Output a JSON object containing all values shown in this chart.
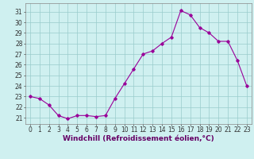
{
  "hours": [
    0,
    1,
    2,
    3,
    4,
    5,
    6,
    7,
    8,
    9,
    10,
    11,
    12,
    13,
    14,
    15,
    16,
    17,
    18,
    19,
    20,
    21,
    22,
    23
  ],
  "values": [
    23.0,
    22.8,
    22.2,
    21.2,
    20.9,
    21.2,
    21.2,
    21.1,
    21.2,
    22.8,
    24.2,
    25.6,
    27.0,
    27.3,
    28.0,
    28.6,
    31.1,
    30.7,
    29.5,
    29.0,
    28.2,
    28.2,
    26.4,
    24.0
  ],
  "line_color": "#990099",
  "marker": "D",
  "marker_size": 1.8,
  "bg_color": "#cff0f0",
  "grid_color": "#99cccc",
  "xlabel": "Windchill (Refroidissement éolien,°C)",
  "xlabel_fontsize": 6.5,
  "ylabel_ticks": [
    21,
    22,
    23,
    24,
    25,
    26,
    27,
    28,
    29,
    30,
    31
  ],
  "ylim": [
    20.4,
    31.8
  ],
  "xlim": [
    -0.5,
    23.5
  ],
  "tick_fontsize": 5.5,
  "line_width": 0.8,
  "xlabel_color": "#660066",
  "xlabel_fontweight": "bold"
}
